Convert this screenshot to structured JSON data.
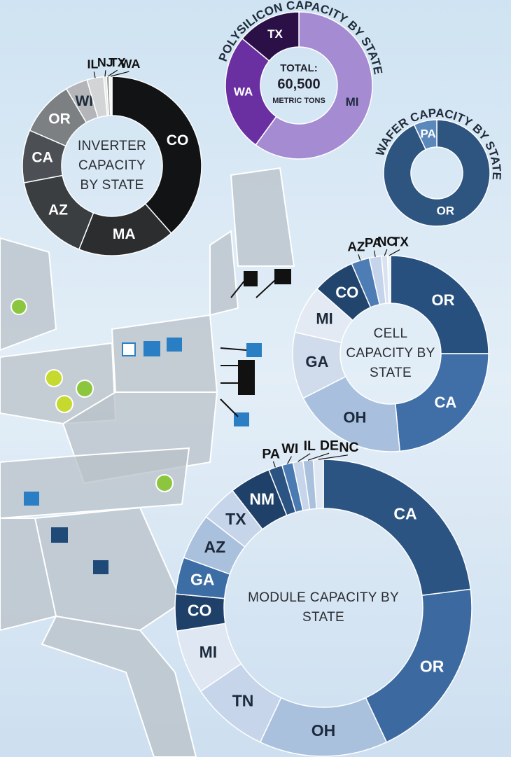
{
  "chart_data": [
    {
      "type": "donut",
      "title": "INVERTER CAPACITY BY STATE",
      "categories": [
        "CO",
        "MA",
        "AZ",
        "CA",
        "OR",
        "WI",
        "IL",
        "NJ",
        "TX",
        "WA"
      ],
      "values": [
        38.5,
        17.5,
        16,
        9.5,
        10,
        4,
        3,
        0.5,
        0.5,
        0.5
      ],
      "colors": [
        "#121314",
        "#2b2d2f",
        "#3b3e41",
        "#4c5054",
        "#7d8083",
        "#b3b5b8",
        "#d2d4d6",
        "#e6e7e8",
        "#9a9c9e",
        "#f2f2f2"
      ]
    },
    {
      "type": "donut",
      "title": "POLYSILICON CAPACITY BY STATE",
      "annotations": [
        "TOTAL:",
        "60,500",
        "METRIC TONS"
      ],
      "categories": [
        "MI",
        "WA",
        "TX"
      ],
      "values": [
        60,
        26,
        14
      ],
      "colors": [
        "#a58bd2",
        "#6a30a2",
        "#2b0f47"
      ]
    },
    {
      "type": "donut",
      "title": "WAFER CAPACITY BY STATE",
      "categories": [
        "OR",
        "PA"
      ],
      "values": [
        93,
        7
      ],
      "colors": [
        "#2d5580",
        "#5b88bb"
      ]
    },
    {
      "type": "donut",
      "title": "CELL CAPACITY BY STATE",
      "categories": [
        "OR",
        "CA",
        "OH",
        "GA",
        "MI",
        "CO",
        "AZ",
        "PA",
        "NC",
        "TX"
      ],
      "values": [
        25,
        23.5,
        19,
        11,
        8,
        7,
        3,
        2,
        1,
        0.5
      ],
      "colors": [
        "#28507e",
        "#3f6fa6",
        "#a8c0de",
        "#d0dcec",
        "#e4eaf3",
        "#22456e",
        "#4e7db5",
        "#c5d4ea",
        "#d8e2f0",
        "#eef2f8"
      ]
    },
    {
      "type": "donut",
      "title": "MODULE CAPACITY BY STATE",
      "categories": [
        "CA",
        "OR",
        "OH",
        "TN",
        "MI",
        "CO",
        "GA",
        "AZ",
        "TX",
        "NM",
        "PA",
        "WI",
        "IL",
        "DE",
        "NC"
      ],
      "values": [
        23,
        20,
        14,
        8.5,
        7,
        4,
        4,
        5,
        4,
        4.5,
        1.5,
        1.2,
        1.1,
        1.1,
        1.1
      ],
      "colors": [
        "#2c5482",
        "#3c6aa0",
        "#aac1de",
        "#c6d5ea",
        "#dfe7f2",
        "#1f4068",
        "#3d6da5",
        "#aac1de",
        "#c6d5ea",
        "#1f4068",
        "#2c5482",
        "#4a7ab2",
        "#c6d5ea",
        "#aac1de",
        "#dfe7f2"
      ]
    }
  ]
}
